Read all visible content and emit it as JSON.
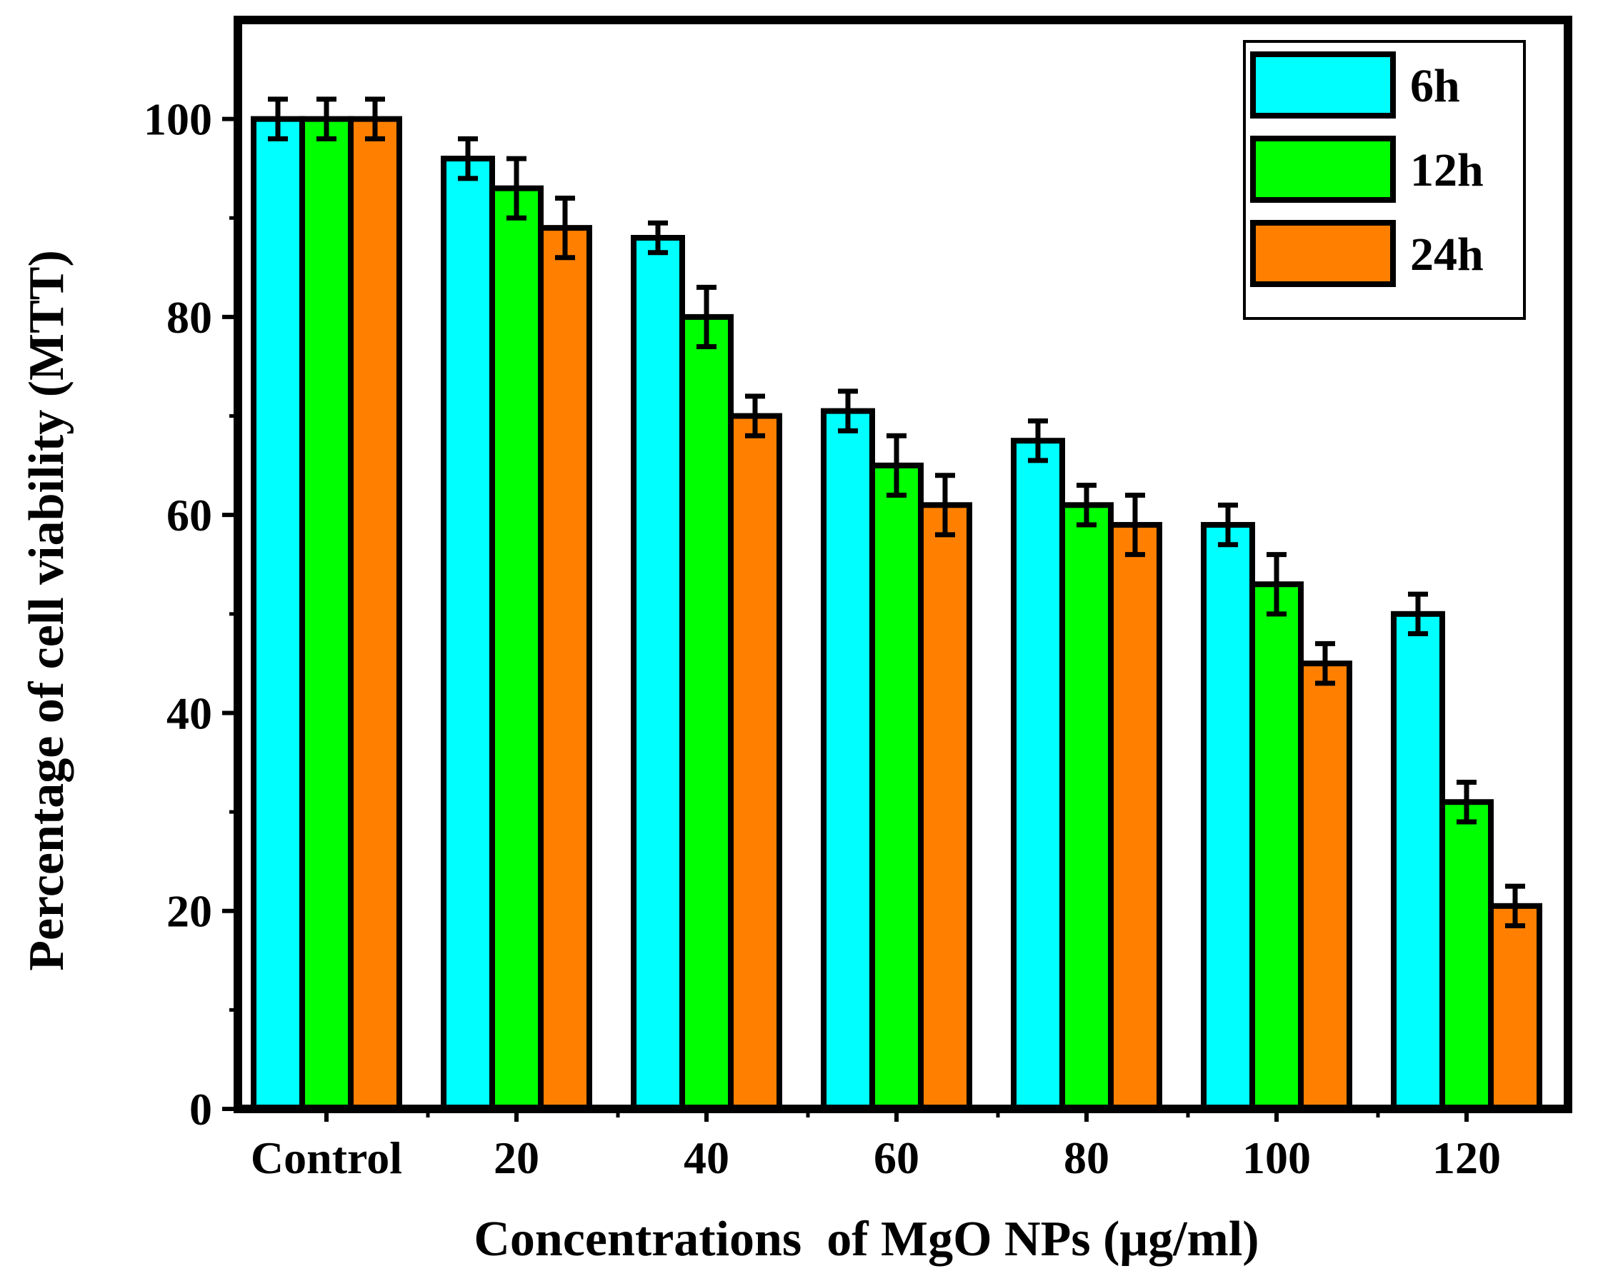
{
  "chart_data": {
    "type": "bar",
    "title": "",
    "xlabel": "Concentrations  of MgO NPs (μg/ml)",
    "ylabel": "Percentage of cell viability (MTT)",
    "categories": [
      "Control",
      "20",
      "40",
      "60",
      "80",
      "100",
      "120"
    ],
    "ylim": [
      0,
      110
    ],
    "yticks": [
      0,
      20,
      40,
      60,
      80,
      100
    ],
    "legend_position": "top-right",
    "series": [
      {
        "name": "6h",
        "color": "#00FFFF",
        "values": [
          100,
          96,
          88,
          70.5,
          67.5,
          59,
          50
        ],
        "errors": [
          2,
          2,
          1.5,
          2,
          2,
          2,
          2
        ]
      },
      {
        "name": "12h",
        "color": "#00FF00",
        "values": [
          100,
          93,
          80,
          65,
          61,
          53,
          31
        ],
        "errors": [
          2,
          3,
          3,
          3,
          2,
          3,
          2
        ]
      },
      {
        "name": "24h",
        "color": "#FF8000",
        "values": [
          100,
          89,
          70,
          61,
          59,
          45,
          20.5
        ],
        "errors": [
          2,
          3,
          2,
          3,
          3,
          2,
          2
        ]
      }
    ]
  }
}
